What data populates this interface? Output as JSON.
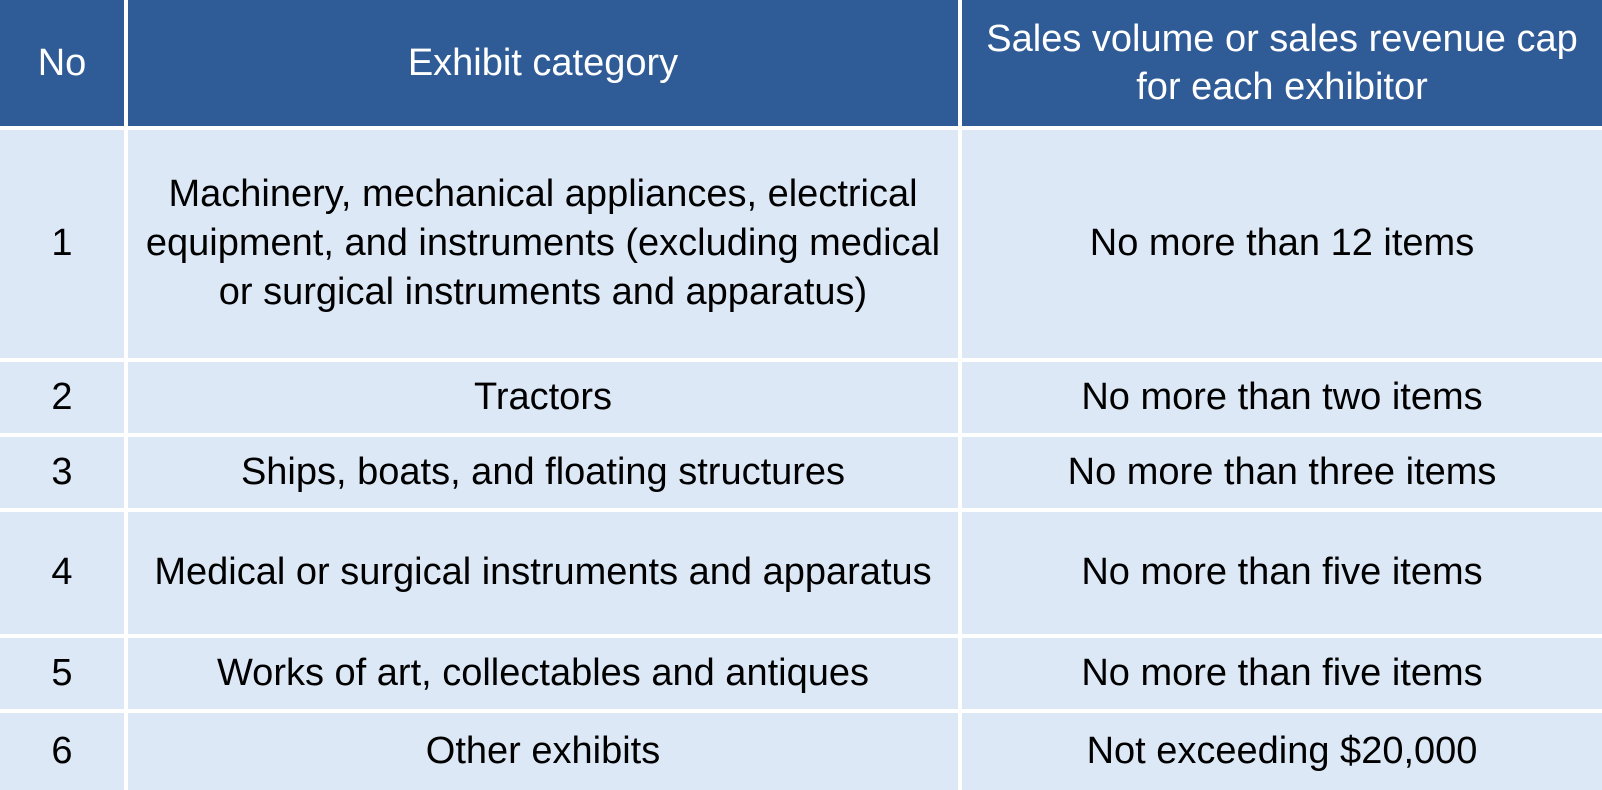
{
  "table": {
    "headers": {
      "no": "No",
      "category": "Exhibit category",
      "cap": "Sales volume or sales revenue cap for each exhibitor"
    },
    "rows": [
      {
        "no": "1",
        "category": "Machinery, mechanical appliances, electrical equipment, and instruments (excluding medical or surgical instruments and apparatus)",
        "cap": "No more than 12 items"
      },
      {
        "no": "2",
        "category": "Tractors",
        "cap": "No more than two items"
      },
      {
        "no": "3",
        "category": "Ships, boats, and floating structures",
        "cap": "No more than three items"
      },
      {
        "no": "4",
        "category": "Medical or surgical instruments and apparatus",
        "cap": "No more than five items"
      },
      {
        "no": "5",
        "category": "Works of art, collectables and antiques",
        "cap": "No more than five items"
      },
      {
        "no": "6",
        "category": "Other exhibits",
        "cap": "Not exceeding $20,000"
      }
    ]
  },
  "colors": {
    "header_bg": "#2f5b96",
    "header_text": "#ffffff",
    "row_bg": "#dce8f6",
    "row_text": "#000000"
  }
}
